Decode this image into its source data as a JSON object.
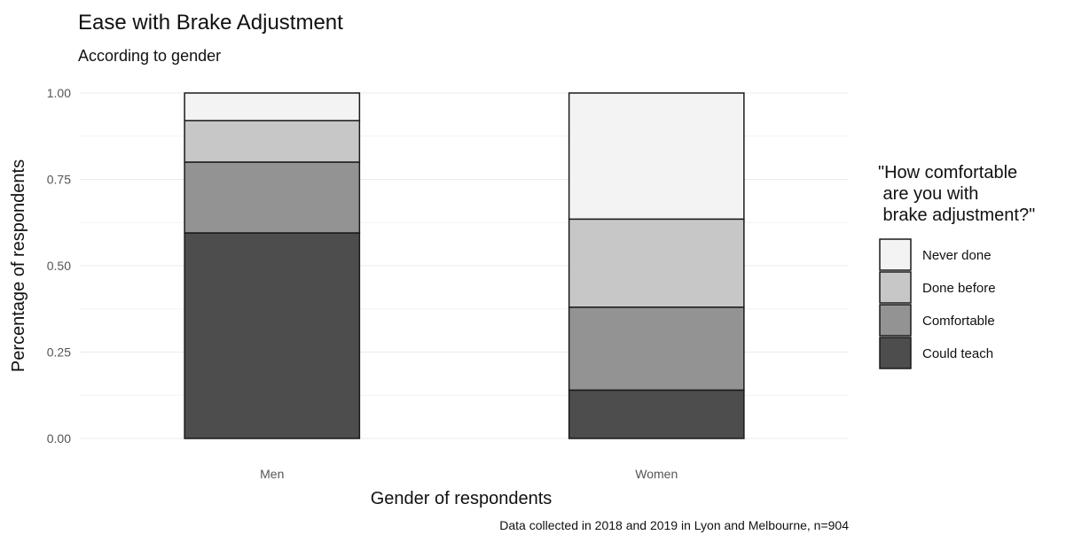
{
  "chart_data": {
    "type": "bar",
    "stacked": true,
    "title": "Ease with Brake Adjustment",
    "subtitle": "According to gender",
    "xlabel": "Gender of respondents",
    "ylabel": "Percentage of respondents",
    "caption": "Data collected in 2018 and 2019 in Lyon and Melbourne, n=904",
    "categories": [
      "Men",
      "Women"
    ],
    "ylim": [
      0,
      1
    ],
    "yticks": [
      "0.00",
      "0.25",
      "0.50",
      "0.75",
      "1.00"
    ],
    "grid": true,
    "legend": {
      "position": "right",
      "title_lines": [
        "\"How comfortable",
        " are you with",
        " brake adjustment?\""
      ]
    },
    "series": [
      {
        "name": "Could teach",
        "color": "#4d4d4d",
        "values": [
          0.595,
          0.14
        ]
      },
      {
        "name": "Comfortable",
        "color": "#939393",
        "values": [
          0.205,
          0.24
        ]
      },
      {
        "name": "Done before",
        "color": "#c7c7c7",
        "values": [
          0.12,
          0.255
        ]
      },
      {
        "name": "Never done",
        "color": "#f3f3f3",
        "values": [
          0.08,
          0.365
        ]
      }
    ]
  }
}
